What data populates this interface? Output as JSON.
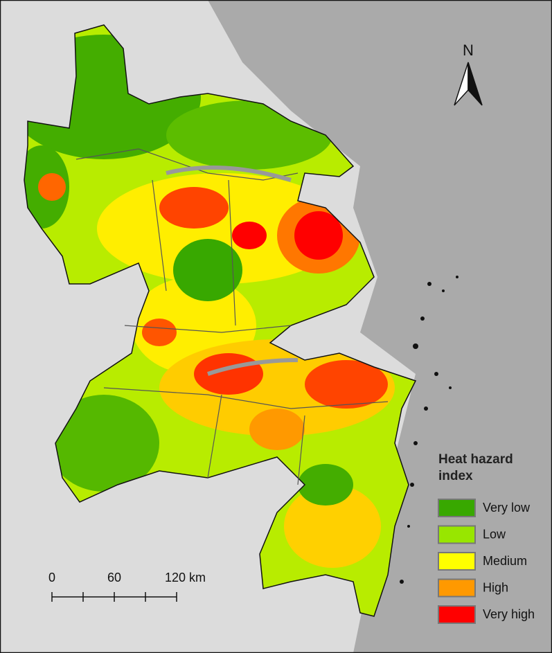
{
  "north_arrow": {
    "label": "N"
  },
  "legend": {
    "title": "Heat hazard index",
    "items": [
      {
        "label": "Very low",
        "color": "#38a800"
      },
      {
        "label": "Low",
        "color": "#98e600"
      },
      {
        "label": "Medium",
        "color": "#ffff00"
      },
      {
        "label": "High",
        "color": "#ff9900"
      },
      {
        "label": "Very high",
        "color": "#ff0000"
      }
    ]
  },
  "scale_bar": {
    "labels": [
      "0",
      "60",
      "120 km"
    ]
  }
}
